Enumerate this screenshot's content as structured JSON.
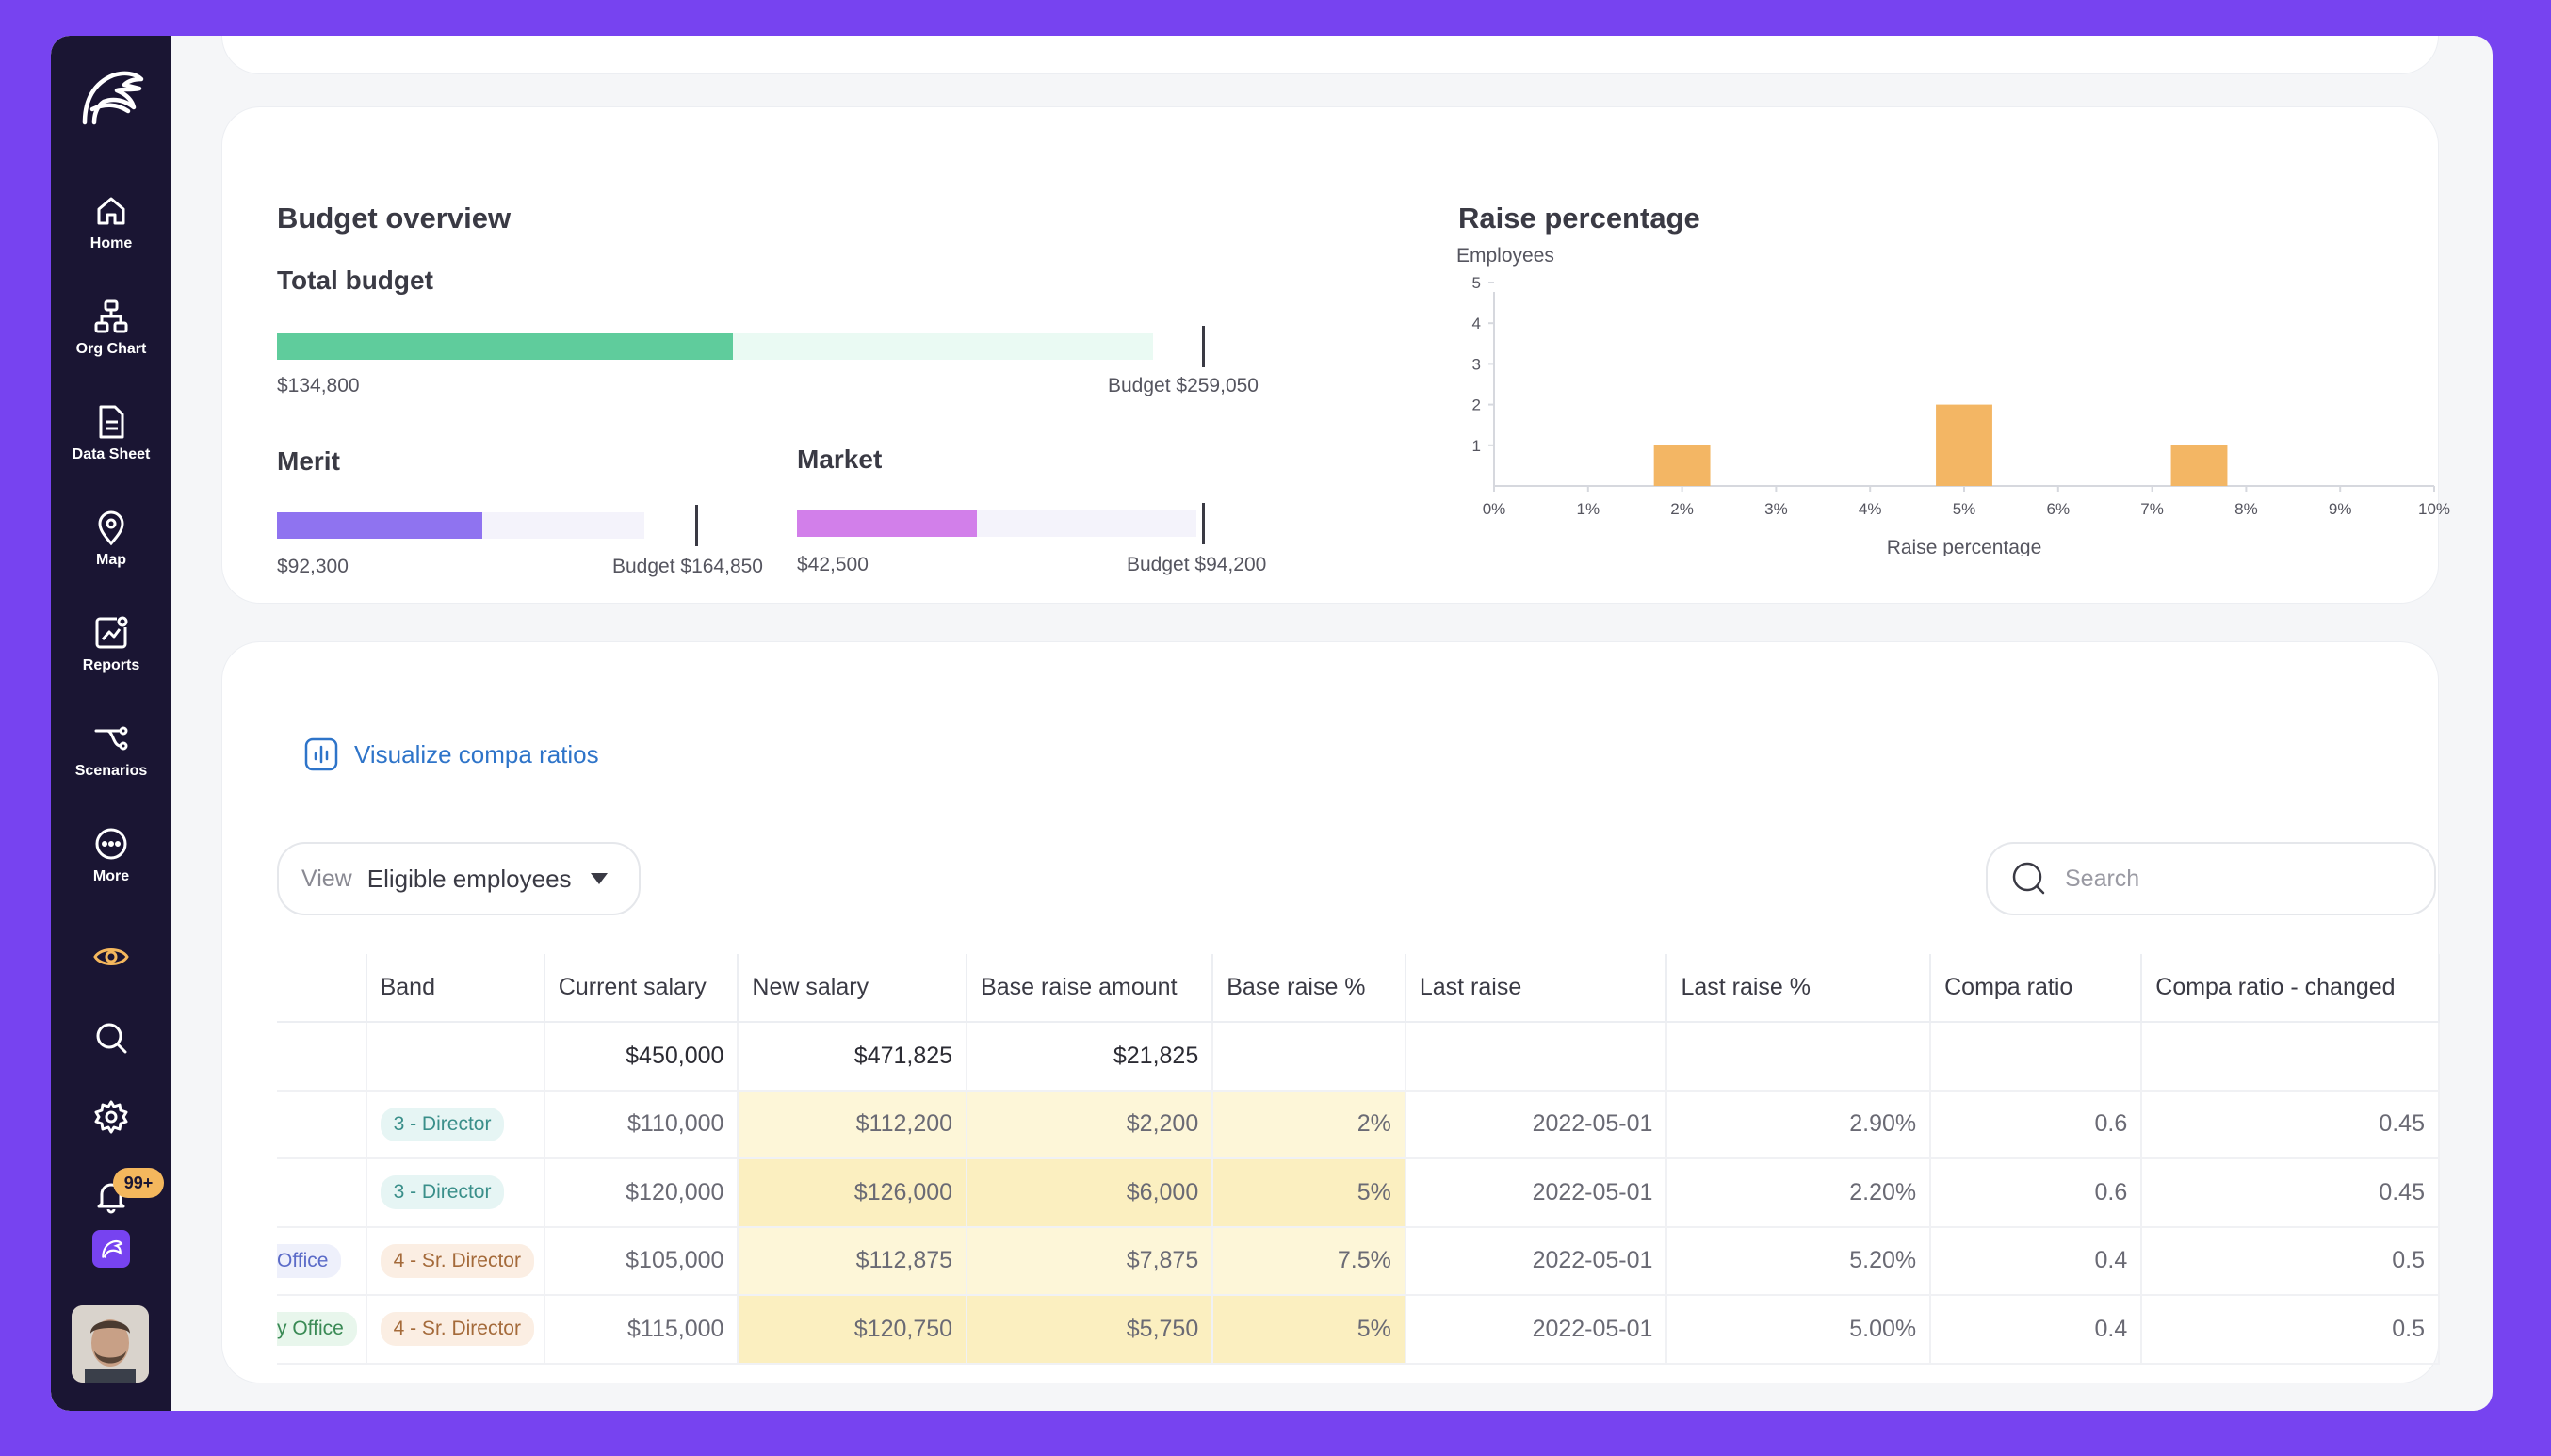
{
  "sidebar": {
    "items": [
      {
        "label": "Home",
        "icon": "home-icon"
      },
      {
        "label": "Org Chart",
        "icon": "org-chart-icon"
      },
      {
        "label": "Data Sheet",
        "icon": "data-sheet-icon"
      },
      {
        "label": "Map",
        "icon": "map-pin-icon"
      },
      {
        "label": "Reports",
        "icon": "reports-icon"
      },
      {
        "label": "Scenarios",
        "icon": "scenarios-icon"
      },
      {
        "label": "More",
        "icon": "more-icon"
      }
    ],
    "notification_badge": "99+"
  },
  "budget": {
    "title": "Budget overview",
    "total": {
      "label": "Total budget",
      "spent": "$134,800",
      "budget": "Budget $259,050",
      "fraction": 0.52
    },
    "merit": {
      "label": "Merit",
      "spent": "$92,300",
      "budget": "Budget $164,850",
      "fraction": 0.56
    },
    "market": {
      "label": "Market",
      "spent": "$42,500",
      "budget": "Budget $94,200",
      "fraction": 0.45
    }
  },
  "raise_chart": {
    "title": "Raise percentage"
  },
  "chart_data": {
    "type": "bar",
    "title": "Raise percentage",
    "xlabel": "Raise percentage",
    "ylabel": "Employees",
    "x_ticks": [
      "0%",
      "1%",
      "2%",
      "3%",
      "4%",
      "5%",
      "6%",
      "7%",
      "8%",
      "9%",
      "10%"
    ],
    "y_ticks": [
      "1",
      "2",
      "3",
      "4",
      "5"
    ],
    "ylim": [
      0,
      5
    ],
    "xlim": [
      0,
      10
    ],
    "bars": [
      {
        "x_start": 1.7,
        "x_end": 2.3,
        "value": 1
      },
      {
        "x_start": 4.7,
        "x_end": 5.3,
        "value": 2
      },
      {
        "x_start": 7.2,
        "x_end": 7.8,
        "value": 1
      }
    ],
    "bar_color": "#f3b664"
  },
  "table_section": {
    "visualize_link": "Visualize compa ratios",
    "view_label": "View",
    "view_value": "Eligible employees",
    "search_placeholder": "Search",
    "headers": [
      "Band",
      "Current salary",
      "New salary",
      "Base raise amount",
      "Base raise %",
      "Last raise",
      "Last raise %",
      "Compa ratio",
      "Compa ratio - changed"
    ],
    "totals": {
      "current": "$450,000",
      "new": "$471,825",
      "amount": "$21,825"
    },
    "rows": [
      {
        "office": "",
        "band": "3 - Director",
        "current": "$110,000",
        "new": "$112,200",
        "amount": "$2,200",
        "pct": "2%",
        "last": "2022-05-01",
        "last_pct": "2.90%",
        "compa": "0.6",
        "compa_changed": "0.45"
      },
      {
        "office": "",
        "band": "3 - Director",
        "current": "$120,000",
        "new": "$126,000",
        "amount": "$6,000",
        "pct": "5%",
        "last": "2022-05-01",
        "last_pct": "2.20%",
        "compa": "0.6",
        "compa_changed": "0.45"
      },
      {
        "office": "Office",
        "band": "4 - Sr. Director",
        "current": "$105,000",
        "new": "$112,875",
        "amount": "$7,875",
        "pct": "7.5%",
        "last": "2022-05-01",
        "last_pct": "5.20%",
        "compa": "0.4",
        "compa_changed": "0.5"
      },
      {
        "office": "y Office",
        "band": "4 - Sr. Director",
        "current": "$115,000",
        "new": "$120,750",
        "amount": "$5,750",
        "pct": "5%",
        "last": "2022-05-01",
        "last_pct": "5.00%",
        "compa": "0.4",
        "compa_changed": "0.5"
      }
    ]
  },
  "colors": {
    "brand": "#7743f0",
    "sidebar": "#1a1533",
    "total_bar": "#5fcc9c",
    "merit_bar": "#8f73f0",
    "market_bar": "#d27fea",
    "link": "#2e74c9"
  }
}
